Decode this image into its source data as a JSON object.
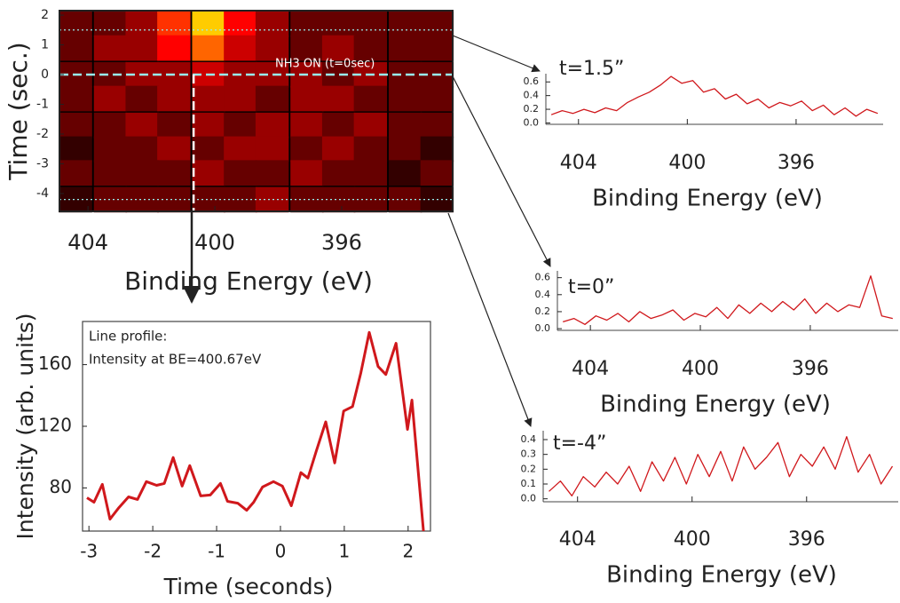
{
  "chart_data": [
    {
      "type": "heatmap",
      "xlabel": "Binding Energy (eV)",
      "ylabel": "Time (sec.)",
      "annotation": "NH3 ON (t=0sec)",
      "x": [
        404.4,
        403.3,
        402.3,
        401.3,
        400.2,
        399.2,
        398.2,
        397.1,
        396.1,
        395.1,
        394.0,
        393.0
      ],
      "y": [
        1.7,
        0.9,
        0.0,
        -0.8,
        -1.7,
        -2.5,
        -3.3,
        -4.2
      ],
      "z": [
        [
          0.2,
          0.2,
          0.3,
          0.6,
          0.9,
          0.5,
          0.3,
          0.2,
          0.2,
          0.2,
          0.2,
          0.2
        ],
        [
          0.2,
          0.3,
          0.3,
          0.5,
          0.7,
          0.4,
          0.3,
          0.2,
          0.3,
          0.2,
          0.2,
          0.2
        ],
        [
          0.2,
          0.2,
          0.3,
          0.3,
          0.4,
          0.3,
          0.3,
          0.3,
          0.2,
          0.3,
          0.2,
          0.2
        ],
        [
          0.2,
          0.3,
          0.2,
          0.3,
          0.3,
          0.3,
          0.2,
          0.3,
          0.3,
          0.2,
          0.2,
          0.2
        ],
        [
          0.2,
          0.2,
          0.3,
          0.2,
          0.3,
          0.2,
          0.3,
          0.3,
          0.2,
          0.3,
          0.2,
          0.2
        ],
        [
          0.1,
          0.2,
          0.2,
          0.3,
          0.2,
          0.3,
          0.3,
          0.2,
          0.3,
          0.2,
          0.2,
          0.1
        ],
        [
          0.2,
          0.2,
          0.2,
          0.2,
          0.3,
          0.2,
          0.2,
          0.3,
          0.2,
          0.2,
          0.1,
          0.2
        ],
        [
          0.1,
          0.2,
          0.2,
          0.2,
          0.2,
          0.2,
          0.3,
          0.2,
          0.2,
          0.2,
          0.2,
          0.1
        ]
      ],
      "xlim": [
        404.9,
        392.5
      ],
      "ylim": [
        -4.6,
        2.15
      ],
      "xticks": [
        404,
        400,
        396
      ],
      "yticks": [
        2,
        1,
        0,
        -1,
        -2,
        -3,
        -4
      ],
      "hlines": [
        1.5,
        0,
        -4.2
      ],
      "vline": 400.67
    },
    {
      "type": "line",
      "annotation": [
        "Line profile:",
        "Intensity at BE=400.67eV"
      ],
      "xlabel": "Time (seconds)",
      "ylabel": "Intensity (arb. units)",
      "color": "#d0181c",
      "x": [
        -3.03,
        -2.92,
        -2.79,
        -2.67,
        -2.53,
        -2.38,
        -2.24,
        -2.1,
        -1.94,
        -1.82,
        -1.68,
        -1.54,
        -1.42,
        -1.25,
        -1.1,
        -0.94,
        -0.83,
        -0.67,
        -0.53,
        -0.42,
        -0.28,
        -0.11,
        0.03,
        0.17,
        0.32,
        0.43,
        0.56,
        0.71,
        0.85,
        0.99,
        1.13,
        1.26,
        1.39,
        1.53,
        1.65,
        1.81,
        1.99,
        2.06,
        2.24
      ],
      "values": [
        73.6,
        70.7,
        82.3,
        59.7,
        67.2,
        74.2,
        72.5,
        84.1,
        81.7,
        82.9,
        99.7,
        81.2,
        94.5,
        74.8,
        75.4,
        82.9,
        71.3,
        70.1,
        65.5,
        70.7,
        80.6,
        84.1,
        81.2,
        68.4,
        89.9,
        86.4,
        103.8,
        122.9,
        96.2,
        129.9,
        132.8,
        154.8,
        180.9,
        158.8,
        153.6,
        173.9,
        118,
        137,
        52
      ],
      "xlim": [
        -3.1,
        2.35
      ],
      "ylim": [
        52,
        188
      ],
      "xticks": [
        -3,
        -2,
        -1,
        0,
        1,
        2
      ],
      "yticks": [
        80,
        120,
        160
      ]
    },
    {
      "type": "line",
      "annotation": [
        "t=1.5”"
      ],
      "xlabel": "Binding Energy (eV)",
      "color": "#d0181c",
      "x": [
        405,
        404.6,
        404.2,
        403.8,
        403.4,
        403,
        402.6,
        402.2,
        401.8,
        401.4,
        401,
        400.6,
        400.2,
        399.8,
        399.4,
        399,
        398.6,
        398.2,
        397.8,
        397.4,
        397,
        396.6,
        396.2,
        395.8,
        395.4,
        395,
        394.6,
        394.2,
        393.8,
        393.4,
        393
      ],
      "values": [
        0.12,
        0.18,
        0.14,
        0.2,
        0.15,
        0.22,
        0.18,
        0.3,
        0.38,
        0.45,
        0.55,
        0.68,
        0.58,
        0.62,
        0.45,
        0.5,
        0.35,
        0.42,
        0.28,
        0.35,
        0.22,
        0.3,
        0.25,
        0.32,
        0.18,
        0.26,
        0.12,
        0.22,
        0.1,
        0.2,
        0.14
      ],
      "xlim": [
        405.2,
        392.8
      ],
      "ylim": [
        -0.02,
        0.72
      ],
      "xticks": [
        404,
        400,
        396
      ],
      "yticks": [
        {
          "value": 0,
          "label": "0.0"
        },
        0.2,
        0.4,
        0.6
      ]
    },
    {
      "type": "line",
      "annotation": [
        "t=0”"
      ],
      "xlabel": "Binding Energy (eV)",
      "color": "#d0181c",
      "x": [
        405,
        404.6,
        404.2,
        403.8,
        403.4,
        403,
        402.6,
        402.2,
        401.8,
        401.4,
        401,
        400.6,
        400.2,
        399.8,
        399.4,
        399,
        398.6,
        398.2,
        397.8,
        397.4,
        397,
        396.6,
        396.2,
        395.8,
        395.4,
        395,
        394.6,
        394.2,
        393.8,
        393.4,
        393
      ],
      "values": [
        0.08,
        0.12,
        0.05,
        0.15,
        0.1,
        0.18,
        0.08,
        0.2,
        0.12,
        0.16,
        0.22,
        0.1,
        0.18,
        0.14,
        0.25,
        0.12,
        0.28,
        0.18,
        0.3,
        0.2,
        0.32,
        0.22,
        0.35,
        0.18,
        0.3,
        0.2,
        0.28,
        0.25,
        0.62,
        0.15,
        0.12
      ],
      "xlim": [
        405.2,
        392.8
      ],
      "ylim": [
        -0.02,
        0.68
      ],
      "xticks": [
        404,
        400,
        396
      ],
      "yticks": [
        {
          "value": 0,
          "label": "0.0"
        },
        0.2,
        0.4,
        0.6
      ]
    },
    {
      "type": "line",
      "annotation": [
        "t=-4”"
      ],
      "xlabel": "Binding Energy (eV)",
      "color": "#d0181c",
      "x": [
        405,
        404.6,
        404.2,
        403.8,
        403.4,
        403,
        402.6,
        402.2,
        401.8,
        401.4,
        401,
        400.6,
        400.2,
        399.8,
        399.4,
        399,
        398.6,
        398.2,
        397.8,
        397.4,
        397,
        396.6,
        396.2,
        395.8,
        395.4,
        395,
        394.6,
        394.2,
        393.8,
        393.4,
        393
      ],
      "values": [
        0.05,
        0.12,
        0.02,
        0.15,
        0.08,
        0.18,
        0.1,
        0.22,
        0.05,
        0.25,
        0.12,
        0.28,
        0.1,
        0.3,
        0.15,
        0.32,
        0.12,
        0.35,
        0.2,
        0.28,
        0.38,
        0.15,
        0.3,
        0.22,
        0.35,
        0.2,
        0.42,
        0.18,
        0.3,
        0.1,
        0.22
      ],
      "xlim": [
        405.2,
        392.8
      ],
      "ylim": [
        -0.02,
        0.46
      ],
      "xticks": [
        404,
        400,
        396
      ],
      "yticks": [
        {
          "value": 0,
          "label": "0.0"
        },
        0.1,
        0.2,
        0.3,
        0.4
      ]
    }
  ]
}
